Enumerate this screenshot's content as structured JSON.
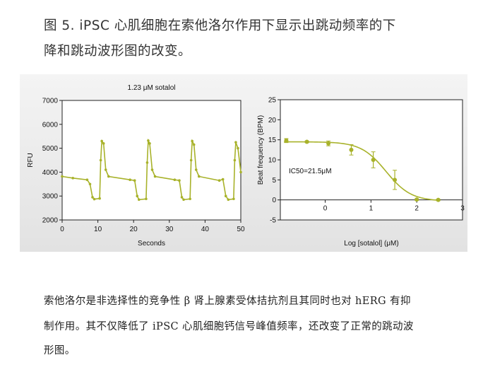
{
  "caption": {
    "line1": "图 5.  iPSC 心肌细胞在索他洛尔作用下显示出跳动频率的下",
    "line2": "降和跳动波形图的改变。"
  },
  "body": {
    "line1": "索他洛尔是非选择性的竞争性 β 肾上腺素受体拮抗剂且其同时也对 hERG 有抑",
    "line2": "制作用。其不仅降低了 iPSC 心肌细胞钙信号峰值频率，还改变了正常的跳动波",
    "line3": "形图。"
  },
  "chart_data": [
    {
      "type": "line",
      "title": "1.23 μM sotalol",
      "xlabel": "Seconds",
      "ylabel": "RFU",
      "xlim": [
        0,
        50
      ],
      "ylim": [
        2000,
        7000
      ],
      "xticks": [
        "0",
        "10",
        "20",
        "30",
        "40",
        "50"
      ],
      "yticks": [
        "2000",
        "3000",
        "4000",
        "5000",
        "6000",
        "7000"
      ],
      "color": "#a8b22a",
      "x": [
        0,
        3,
        7,
        7.8,
        8.5,
        9,
        10.5,
        10.8,
        11.1,
        11.6,
        12.2,
        13,
        19,
        20.3,
        21,
        21.5,
        23.5,
        23.8,
        24.1,
        24.5,
        25.2,
        26,
        31.5,
        32.8,
        33.5,
        34,
        35.8,
        36.1,
        36.4,
        36.9,
        37.5,
        38.3,
        44,
        45,
        45.8,
        46.5,
        48,
        48.3,
        48.6,
        49.2,
        50
      ],
      "y": [
        3820,
        3750,
        3680,
        3500,
        2950,
        2870,
        2900,
        4500,
        5300,
        5200,
        4100,
        3820,
        3680,
        3650,
        3000,
        2850,
        2880,
        4400,
        5320,
        5200,
        4100,
        3820,
        3680,
        3650,
        2950,
        2850,
        2880,
        4500,
        5300,
        5150,
        4100,
        3820,
        3650,
        3700,
        3000,
        2850,
        2880,
        4500,
        5250,
        5000,
        4000
      ]
    },
    {
      "type": "scatter",
      "xlabel": "Log [sotalol] (μM)",
      "ylabel": "Beat frequency (BPM)",
      "xlim": [
        -0.98,
        3
      ],
      "ylim": [
        -5,
        25
      ],
      "xticks": [
        "0",
        "1",
        "2",
        "3"
      ],
      "yticks": [
        "-5",
        "0",
        "5",
        "10",
        "15",
        "20",
        "25"
      ],
      "annotation": "IC50=21.5μM",
      "color": "#a8b22a",
      "x": [
        -0.85,
        -0.4,
        0.07,
        0.57,
        1.05,
        1.52,
        2.0,
        2.47
      ],
      "y": [
        14.8,
        14.5,
        14.1,
        12.5,
        10.0,
        5.0,
        0.1,
        0.0
      ],
      "err": [
        0.5,
        0.2,
        0.6,
        1.3,
        2.0,
        2.4,
        0.2,
        0.2
      ],
      "fit": {
        "top": 14.5,
        "bottom": -0.3,
        "logIC50": 1.33,
        "hill": 1.6
      }
    }
  ]
}
